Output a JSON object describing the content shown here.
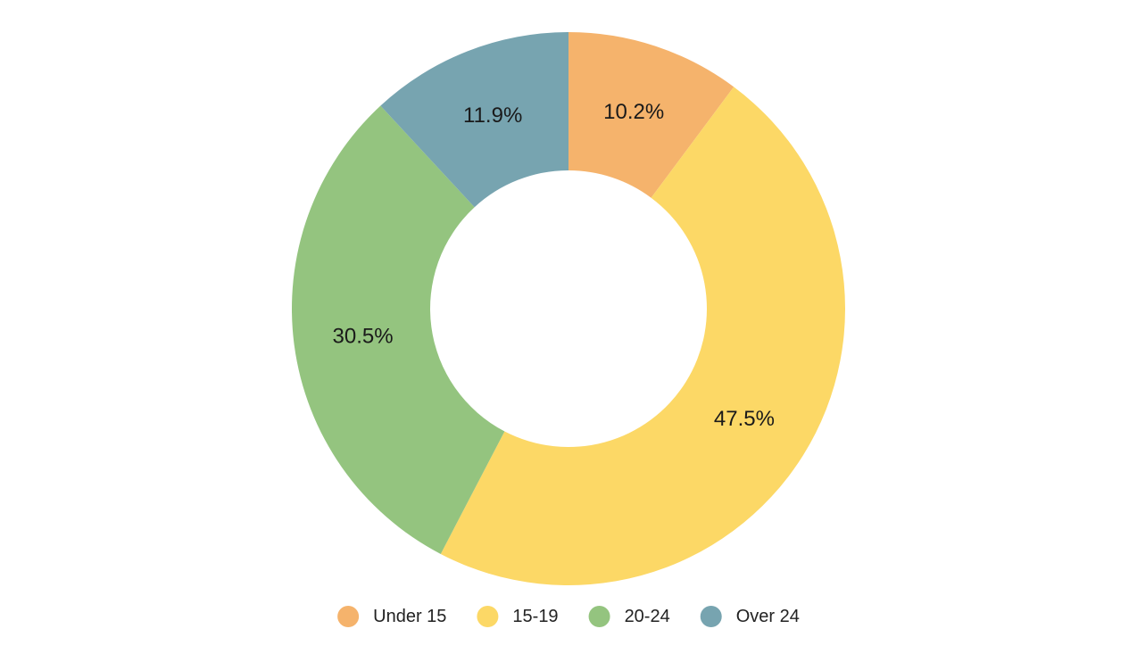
{
  "chart_data": {
    "type": "pie",
    "donut": true,
    "title": "",
    "categories": [
      "Under 15",
      "15-19",
      "20-24",
      "Over 24"
    ],
    "values": [
      10.2,
      47.5,
      30.5,
      11.9
    ],
    "labels": [
      "10.2%",
      "47.5%",
      "30.5%",
      "11.9%"
    ],
    "colors": [
      "#f5b36c",
      "#fcd866",
      "#94c47f",
      "#77a4b0"
    ],
    "legend": {
      "placement": "bottom",
      "entries": [
        "Under 15",
        "15-19",
        "20-24",
        "Over 24"
      ]
    },
    "start_angle_deg": 0,
    "direction": "clockwise"
  }
}
